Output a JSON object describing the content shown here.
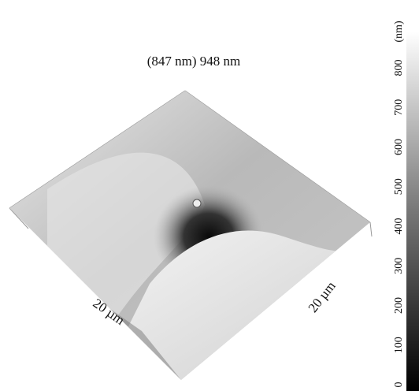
{
  "image": {
    "height_label": "(847 nm) 948 nm",
    "x_size_label": "20 µm",
    "y_size_label": "20 µm"
  },
  "colorbar": {
    "unit": "(nm)",
    "ticks": [
      0,
      100,
      200,
      300,
      400,
      500,
      600,
      700,
      800
    ]
  }
}
